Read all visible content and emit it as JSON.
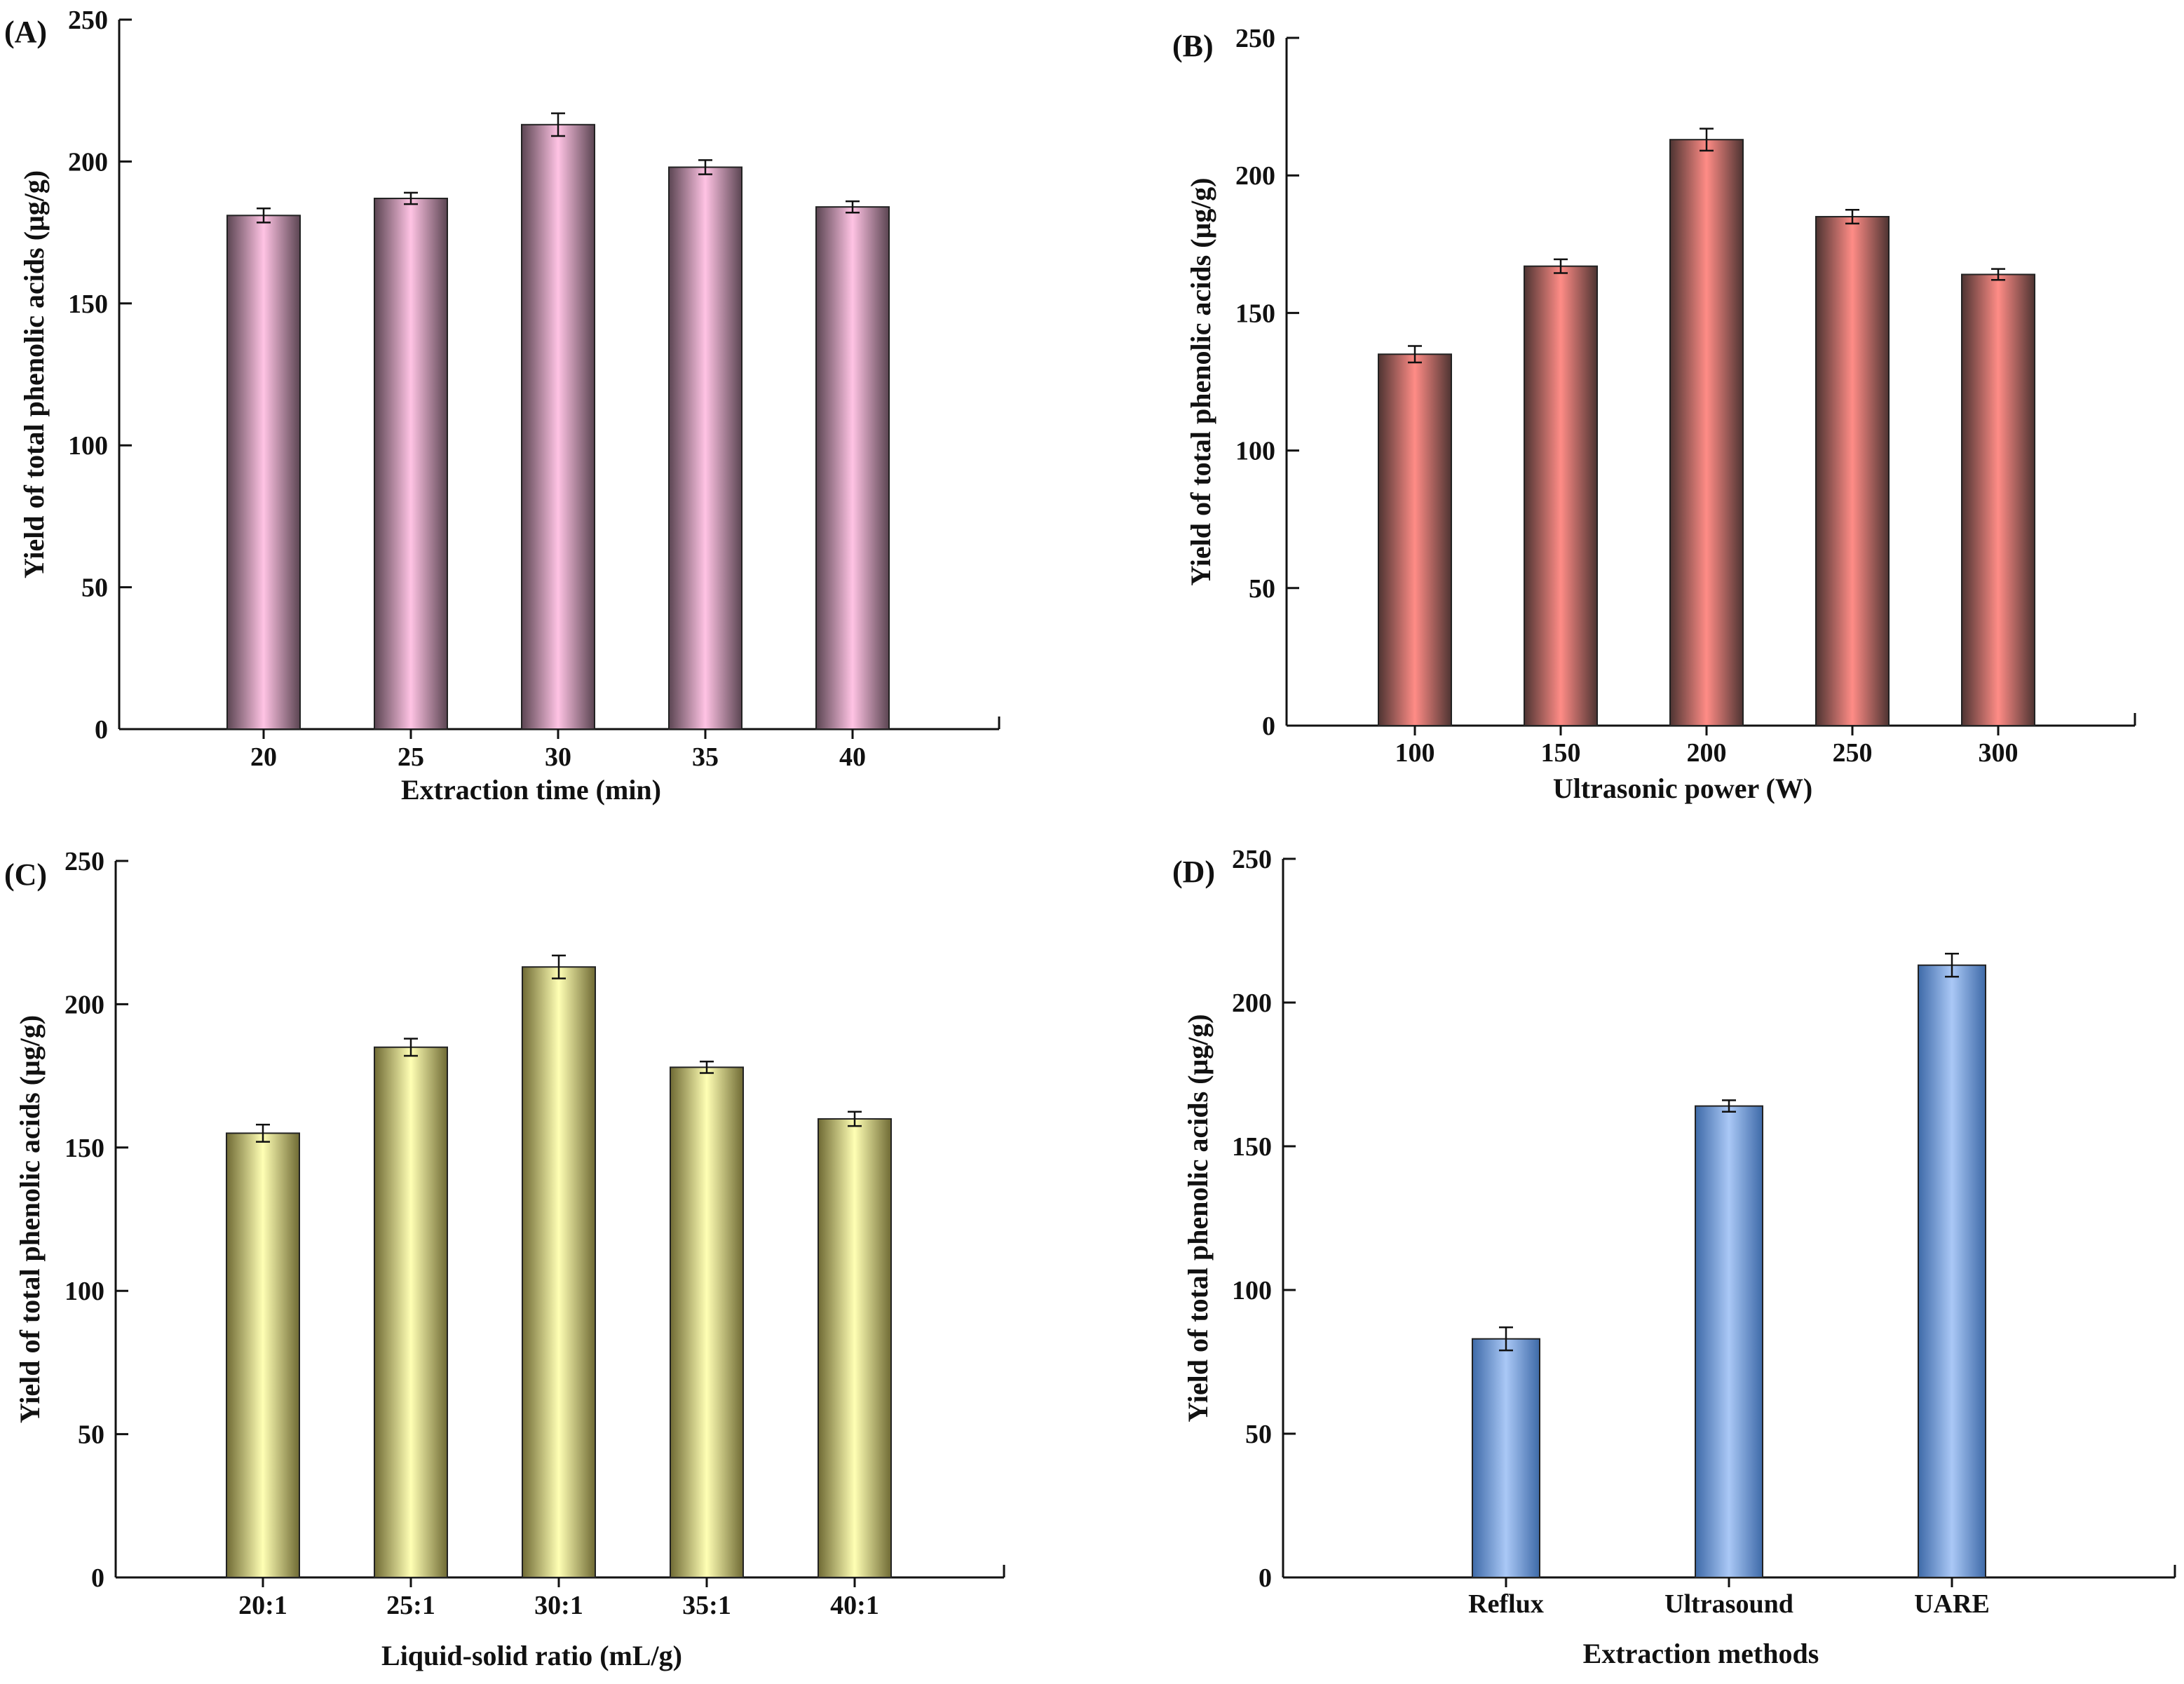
{
  "colors": {
    "A": {
      "mid": "#ffc3e4",
      "edge": "#5b4552"
    },
    "B": {
      "mid": "#ff8c86",
      "edge": "#4e3432"
    },
    "C": {
      "mid": "#ffffb4",
      "edge": "#6f6a34"
    },
    "D": {
      "mid": "#aac8f6",
      "edge": "#3e6aa8"
    }
  },
  "chart_data": [
    {
      "id": "A",
      "panel_label": "(A)",
      "type": "bar",
      "xlabel": "Extraction time (min)",
      "ylabel": "Yield of total phenolic acids (μg/g)",
      "ylim": [
        0,
        250
      ],
      "yticks": [
        0,
        50,
        100,
        150,
        200,
        250
      ],
      "categories": [
        "20",
        "25",
        "30",
        "35",
        "40"
      ],
      "values": [
        181,
        187,
        213,
        198,
        184
      ],
      "errors": [
        2.5,
        2,
        4,
        2.5,
        2
      ],
      "grid": false
    },
    {
      "id": "B",
      "panel_label": "(B)",
      "type": "bar",
      "xlabel": "Ultrasonic power (W)",
      "ylabel": "Yield of total phenolic acids (μg/g)",
      "ylim": [
        0,
        250
      ],
      "yticks": [
        0,
        50,
        100,
        150,
        200,
        250
      ],
      "categories": [
        "100",
        "150",
        "200",
        "250",
        "300"
      ],
      "values": [
        135,
        167,
        213,
        185,
        164
      ],
      "errors": [
        3,
        2.5,
        4,
        2.5,
        2
      ],
      "grid": false
    },
    {
      "id": "C",
      "panel_label": "(C)",
      "type": "bar",
      "xlabel": "Liquid-solid ratio (mL/g)",
      "ylabel": "Yield of total phenolic acids (μg/g)",
      "ylim": [
        0,
        250
      ],
      "yticks": [
        0,
        50,
        100,
        150,
        200,
        250
      ],
      "categories": [
        "20:1",
        "25:1",
        "30:1",
        "35:1",
        "40:1"
      ],
      "values": [
        155,
        185,
        213,
        178,
        160
      ],
      "errors": [
        3,
        3,
        4,
        2,
        2.5
      ],
      "grid": false
    },
    {
      "id": "D",
      "panel_label": "(D)",
      "type": "bar",
      "xlabel": "Extraction methods",
      "ylabel": "Yield of total phenolic acids (μg/g)",
      "ylim": [
        0,
        250
      ],
      "yticks": [
        0,
        50,
        100,
        150,
        200,
        250
      ],
      "categories": [
        "Reflux",
        "Ultrasound",
        "UARE"
      ],
      "values": [
        83,
        164,
        213
      ],
      "errors": [
        4,
        2,
        4
      ],
      "grid": false
    }
  ]
}
